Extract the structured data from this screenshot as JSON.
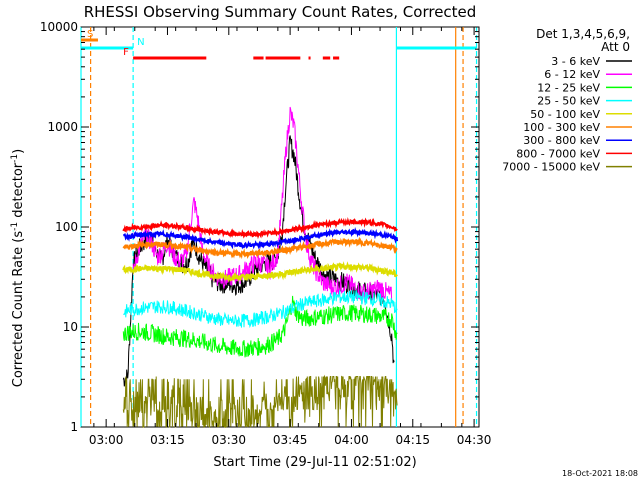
{
  "chart_data": {
    "type": "line",
    "title": "RHESSI Observing Summary Count Rates, Corrected",
    "xlabel": "Start Time (29-Jul-11 02:51:02)",
    "ylabel_main": "Corrected Count Rate (s",
    "ylabel_sup1": "-1",
    "ylabel_mid": " detector",
    "ylabel_sup2": "-1",
    "ylabel_end": ")",
    "yscale": "log",
    "ylim": [
      1,
      10000
    ],
    "xlim_minutes": [
      2.85,
      100.2
    ],
    "x_ticks": [
      {
        "label": "03:00",
        "minute": 9
      },
      {
        "label": "03:15",
        "minute": 24
      },
      {
        "label": "03:30",
        "minute": 39
      },
      {
        "label": "03:45",
        "minute": 54
      },
      {
        "label": "04:00",
        "minute": 69
      },
      {
        "label": "04:15",
        "minute": 84
      },
      {
        "label": "04:30",
        "minute": 99
      }
    ],
    "y_ticks": [
      {
        "label": "1",
        "value": 1
      },
      {
        "label": "10",
        "value": 10
      },
      {
        "label": "100",
        "value": 100
      },
      {
        "label": "1000",
        "value": 1000
      },
      {
        "label": "10000",
        "value": 10000
      }
    ],
    "legend": {
      "header1": "Det 1,3,4,5,6,9,",
      "header2": "Att 0",
      "placement": "right"
    },
    "series": [
      {
        "name": "3 - 6 keV",
        "color": "#000000",
        "points": [
          [
            13.2,
            3
          ],
          [
            14.3,
            3.2
          ],
          [
            15.6,
            42
          ],
          [
            17,
            60
          ],
          [
            19.5,
            85
          ],
          [
            21,
            60
          ],
          [
            22.5,
            45
          ],
          [
            24,
            75
          ],
          [
            25.5,
            55
          ],
          [
            27.5,
            42
          ],
          [
            29,
            45
          ],
          [
            30,
            68
          ],
          [
            31,
            62
          ],
          [
            32,
            48
          ],
          [
            33.5,
            38
          ],
          [
            35,
            30
          ],
          [
            37,
            27
          ],
          [
            39,
            27
          ],
          [
            41,
            26
          ],
          [
            43,
            28
          ],
          [
            45,
            34
          ],
          [
            47,
            42
          ],
          [
            48.5,
            45
          ],
          [
            50,
            46
          ],
          [
            51,
            52
          ],
          [
            52,
            85
          ],
          [
            53,
            280
          ],
          [
            54,
            700
          ],
          [
            55,
            520
          ],
          [
            56,
            250
          ],
          [
            57,
            120
          ],
          [
            58,
            85
          ],
          [
            59,
            65
          ],
          [
            60,
            50
          ],
          [
            61.5,
            38
          ],
          [
            63,
            32
          ],
          [
            65,
            30
          ],
          [
            67,
            28
          ],
          [
            69,
            25
          ],
          [
            71,
            23
          ],
          [
            73,
            22
          ],
          [
            75,
            21
          ],
          [
            77,
            20
          ],
          [
            78.9,
            8
          ],
          [
            79.5,
            3.5
          ]
        ]
      },
      {
        "name": "6 - 12 keV",
        "color": "#ff00ff",
        "points": [
          [
            15.6,
            35
          ],
          [
            17,
            60
          ],
          [
            18.5,
            80
          ],
          [
            20,
            72
          ],
          [
            21.5,
            50
          ],
          [
            23,
            58
          ],
          [
            24,
            70
          ],
          [
            25.5,
            52
          ],
          [
            27,
            45
          ],
          [
            28.5,
            50
          ],
          [
            29.8,
            120
          ],
          [
            30.5,
            180
          ],
          [
            31.5,
            115
          ],
          [
            32.5,
            60
          ],
          [
            34,
            40
          ],
          [
            36,
            32
          ],
          [
            38,
            30
          ],
          [
            40,
            32
          ],
          [
            42,
            34
          ],
          [
            44,
            40
          ],
          [
            46,
            45
          ],
          [
            47.5,
            42
          ],
          [
            49,
            38
          ],
          [
            50,
            45
          ],
          [
            51,
            55
          ],
          [
            52,
            170
          ],
          [
            53,
            600
          ],
          [
            54,
            1400
          ],
          [
            55,
            1000
          ],
          [
            56,
            380
          ],
          [
            57,
            150
          ],
          [
            58,
            70
          ],
          [
            59,
            48
          ],
          [
            60,
            38
          ],
          [
            62,
            28
          ],
          [
            64,
            25
          ],
          [
            66,
            26
          ],
          [
            68,
            28
          ],
          [
            70,
            24
          ],
          [
            72,
            22
          ],
          [
            74,
            23
          ],
          [
            76,
            25
          ],
          [
            78.9,
            20
          ]
        ]
      },
      {
        "name": "12 - 25 keV",
        "color": "#00ff00",
        "points": [
          [
            13.2,
            8.5
          ],
          [
            15,
            9
          ],
          [
            18,
            9
          ],
          [
            21,
            8.5
          ],
          [
            24,
            8
          ],
          [
            27,
            7.8
          ],
          [
            30,
            7.5
          ],
          [
            33,
            7
          ],
          [
            36,
            6.5
          ],
          [
            39,
            6.2
          ],
          [
            42,
            6
          ],
          [
            45,
            6.2
          ],
          [
            48,
            6.5
          ],
          [
            51,
            7.5
          ],
          [
            52.5,
            9
          ],
          [
            53.5,
            12
          ],
          [
            54.5,
            18
          ],
          [
            55.5,
            14
          ],
          [
            57,
            12
          ],
          [
            60,
            12.5
          ],
          [
            63,
            13
          ],
          [
            66,
            13.5
          ],
          [
            69,
            13.8
          ],
          [
            72,
            13.5
          ],
          [
            75,
            13
          ],
          [
            78.9,
            12
          ],
          [
            80.2,
            8
          ]
        ]
      },
      {
        "name": "25 - 50 keV",
        "color": "#00ffff",
        "points": [
          [
            13.2,
            14
          ],
          [
            15,
            15
          ],
          [
            18,
            15.5
          ],
          [
            21,
            16
          ],
          [
            24,
            16
          ],
          [
            27,
            15
          ],
          [
            30,
            14
          ],
          [
            33,
            13
          ],
          [
            36,
            12
          ],
          [
            39,
            11.5
          ],
          [
            42,
            11.5
          ],
          [
            45,
            11.8
          ],
          [
            48,
            12.5
          ],
          [
            51,
            13.5
          ],
          [
            54,
            15
          ],
          [
            57,
            17
          ],
          [
            60,
            18
          ],
          [
            63,
            19
          ],
          [
            66,
            20
          ],
          [
            69,
            20
          ],
          [
            72,
            19.5
          ],
          [
            75,
            19
          ],
          [
            78.9,
            17
          ],
          [
            80.2,
            15
          ]
        ]
      },
      {
        "name": "50 - 100 keV",
        "color": "#dddd00",
        "points": [
          [
            13.2,
            37
          ],
          [
            16,
            38
          ],
          [
            19,
            38.5
          ],
          [
            22,
            38.5
          ],
          [
            25,
            38
          ],
          [
            28,
            37
          ],
          [
            31,
            35
          ],
          [
            34,
            33
          ],
          [
            37,
            32
          ],
          [
            40,
            31.5
          ],
          [
            43,
            31.5
          ],
          [
            46,
            32
          ],
          [
            49,
            33
          ],
          [
            52,
            34
          ],
          [
            55,
            35.5
          ],
          [
            58,
            37
          ],
          [
            61,
            38
          ],
          [
            64,
            39
          ],
          [
            67,
            40
          ],
          [
            70,
            40
          ],
          [
            73,
            39
          ],
          [
            76,
            37
          ],
          [
            78.9,
            35
          ],
          [
            80.2,
            33
          ]
        ]
      },
      {
        "name": "100 - 300 keV",
        "color": "#ff8000",
        "points": [
          [
            13.2,
            63
          ],
          [
            16,
            65
          ],
          [
            19,
            67
          ],
          [
            22,
            67
          ],
          [
            25,
            66
          ],
          [
            28,
            63
          ],
          [
            31,
            60
          ],
          [
            34,
            57
          ],
          [
            37,
            55
          ],
          [
            40,
            54
          ],
          [
            43,
            54
          ],
          [
            46,
            55
          ],
          [
            49,
            56
          ],
          [
            52,
            58
          ],
          [
            55,
            61
          ],
          [
            58,
            64
          ],
          [
            61,
            67
          ],
          [
            64,
            70
          ],
          [
            67,
            71
          ],
          [
            70,
            71
          ],
          [
            73,
            69
          ],
          [
            76,
            66
          ],
          [
            78.9,
            63
          ],
          [
            80.2,
            60
          ]
        ]
      },
      {
        "name": "300 - 800 keV",
        "color": "#0000ff",
        "points": [
          [
            13.2,
            80
          ],
          [
            16,
            82
          ],
          [
            19,
            84
          ],
          [
            22,
            85
          ],
          [
            25,
            83
          ],
          [
            28,
            80
          ],
          [
            31,
            76
          ],
          [
            34,
            72
          ],
          [
            37,
            69
          ],
          [
            40,
            67
          ],
          [
            43,
            66
          ],
          [
            46,
            66
          ],
          [
            49,
            68
          ],
          [
            52,
            71
          ],
          [
            55,
            75
          ],
          [
            58,
            79
          ],
          [
            61,
            83
          ],
          [
            64,
            87
          ],
          [
            67,
            89
          ],
          [
            70,
            89
          ],
          [
            73,
            87
          ],
          [
            76,
            84
          ],
          [
            78.9,
            80
          ],
          [
            80.2,
            75
          ]
        ]
      },
      {
        "name": "800 - 7000 keV",
        "color": "#ff0000",
        "points": [
          [
            13.2,
            95
          ],
          [
            16,
            98
          ],
          [
            19,
            101
          ],
          [
            22,
            104
          ],
          [
            25,
            103
          ],
          [
            28,
            99
          ],
          [
            31,
            95
          ],
          [
            34,
            91
          ],
          [
            37,
            88
          ],
          [
            40,
            86
          ],
          [
            43,
            85
          ],
          [
            46,
            85
          ],
          [
            49,
            87
          ],
          [
            52,
            90
          ],
          [
            55,
            95
          ],
          [
            58,
            100
          ],
          [
            61,
            105
          ],
          [
            64,
            109
          ],
          [
            67,
            112
          ],
          [
            70,
            113
          ],
          [
            73,
            111
          ],
          [
            76,
            107
          ],
          [
            78.9,
            100
          ],
          [
            80.2,
            95
          ]
        ]
      },
      {
        "name": "7000 - 15000 keV",
        "color": "#808000",
        "points": [
          [
            13.2,
            1.5
          ],
          [
            15,
            1.5
          ],
          [
            17,
            1.5
          ],
          [
            19,
            1.5
          ],
          [
            21,
            1.5
          ],
          [
            23,
            1.5
          ],
          [
            25,
            1.5
          ],
          [
            27,
            1.5
          ],
          [
            30,
            1.3
          ],
          [
            33,
            1.2
          ],
          [
            36,
            1.1
          ],
          [
            39,
            1.1
          ],
          [
            42,
            1.1
          ],
          [
            45,
            1.2
          ],
          [
            48,
            1.4
          ],
          [
            51,
            1.6
          ],
          [
            54,
            1.8
          ],
          [
            57,
            2.2
          ],
          [
            60,
            2.5
          ],
          [
            63,
            2.6
          ],
          [
            66,
            2.7
          ],
          [
            69,
            2.8
          ],
          [
            72,
            2.8
          ],
          [
            75,
            2.6
          ],
          [
            78.9,
            2.2
          ],
          [
            80.2,
            1.6
          ]
        ]
      }
    ],
    "flag_segments": [
      {
        "label": "S",
        "color": "#ff8000",
        "segments": [
          [
            2.85,
            7
          ]
        ]
      },
      {
        "label": "N",
        "color": "#00ffff",
        "segments": [
          [
            2.85,
            15.6
          ],
          [
            80,
            99.6
          ]
        ]
      },
      {
        "label": "F",
        "color": "#ff0000",
        "segments": [
          [
            15.6,
            33.5
          ],
          [
            45,
            47.5
          ],
          [
            48,
            56.5
          ],
          [
            58.5,
            59
          ],
          [
            62,
            63.8
          ],
          [
            64.5,
            66
          ]
        ]
      }
    ],
    "vertical_markers": [
      {
        "minute": 2.85,
        "color": "#00ffff",
        "dashed": false
      },
      {
        "minute": 5.2,
        "color": "#ff8000",
        "dashed": true
      },
      {
        "minute": 15.6,
        "color": "#00ffff",
        "dashed": true
      },
      {
        "minute": 80,
        "color": "#00ffff",
        "dashed": false
      },
      {
        "minute": 94.5,
        "color": "#ff8000",
        "dashed": false
      },
      {
        "minute": 96.3,
        "color": "#ff8000",
        "dashed": true
      },
      {
        "minute": 99.6,
        "color": "#00ffff",
        "dashed": true
      }
    ]
  },
  "footer_timestamp": "18-Oct-2021 18:08"
}
